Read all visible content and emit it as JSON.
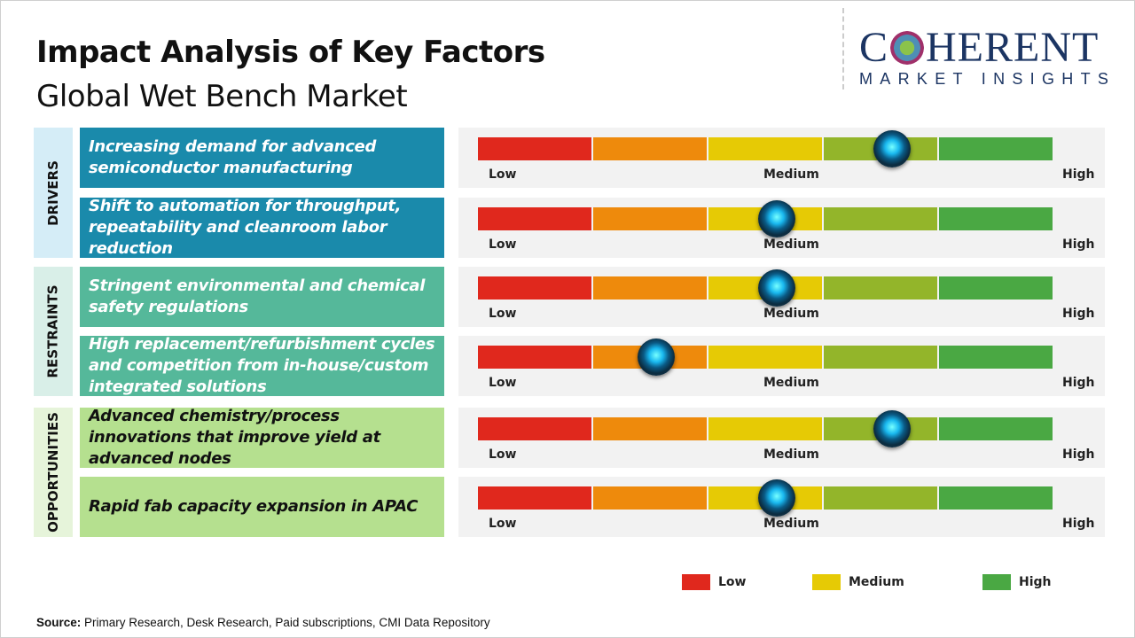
{
  "header": {
    "title": "Impact Analysis of Key Factors",
    "subtitle": "Global Wet Bench Market"
  },
  "logo": {
    "top": "C   HERENT",
    "bottom": "MARKET INSIGHTS"
  },
  "colors": {
    "low": "#e0281d",
    "medium_low": "#ee8a0c",
    "medium": "#e6ca05",
    "medium_high": "#93b52a",
    "high": "#4aa843",
    "drivers": "#1a8aab",
    "restraints": "#55b89a",
    "opportunities": "#b5e08f"
  },
  "chart_data": {
    "type": "gauge",
    "scale": [
      "Low",
      "Medium",
      "High"
    ],
    "segments": 5,
    "categories": [
      {
        "name": "DRIVERS",
        "factors": [
          {
            "label": "Increasing demand for advanced semiconductor manufacturing",
            "impact_pct": 72
          },
          {
            "label": "Shift to automation for throughput, repeatability and cleanroom labor reduction",
            "impact_pct": 52
          }
        ]
      },
      {
        "name": "RESTRAINTS",
        "factors": [
          {
            "label": "Stringent environmental and chemical safety regulations",
            "impact_pct": 52
          },
          {
            "label": "High replacement/refurbishment cycles and competition from in-house/custom integrated solutions",
            "impact_pct": 31
          }
        ]
      },
      {
        "name": "OPPORTUNITIES",
        "factors": [
          {
            "label": "Advanced chemistry/process innovations that improve yield at advanced nodes",
            "impact_pct": 72
          },
          {
            "label": "Rapid fab capacity expansion in APAC",
            "impact_pct": 52
          }
        ]
      }
    ],
    "legend": [
      "Low",
      "Medium",
      "High"
    ]
  },
  "source": {
    "label": "Source:",
    "text": " Primary Research, Desk Research, Paid subscriptions, CMI Data Repository"
  }
}
